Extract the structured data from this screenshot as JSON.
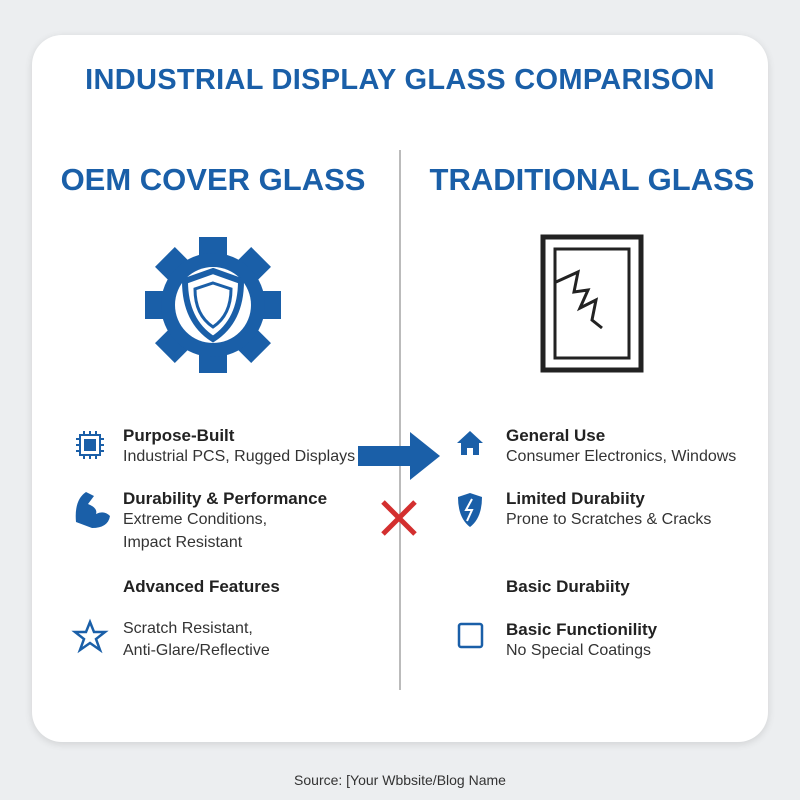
{
  "title": "INDUSTRIAL DISPLAY GLASS COMPARISON",
  "columns": [
    {
      "heading": "OEM COVER GLASS",
      "items": [
        {
          "title": "Purpose-Built",
          "lines": [
            "Industrial PCS, Rugged Displays"
          ]
        },
        {
          "title": "Durability & Performance",
          "lines": [
            "Extreme Conditions,",
            "Impact Resistant"
          ]
        },
        {
          "title": "Advanced Features",
          "lines": []
        },
        {
          "title": "Scratch Resistant,",
          "lines": [
            "Anti-Glare/Reflective"
          ]
        }
      ]
    },
    {
      "heading": "TRADITIONAL GLASS",
      "items": [
        {
          "title": "General Use",
          "lines": [
            "Consumer Electronics, Windows"
          ]
        },
        {
          "title": "Limited Durabiity",
          "lines": [
            "Prone to Scratches & Cracks"
          ]
        },
        {
          "title": "Basic Durabiity",
          "lines": []
        },
        {
          "title": "Basic Functionility",
          "lines": [
            "No Special Coatings"
          ]
        }
      ]
    }
  ],
  "footer": "Source: [Your Wbbsite/Blog Name"
}
